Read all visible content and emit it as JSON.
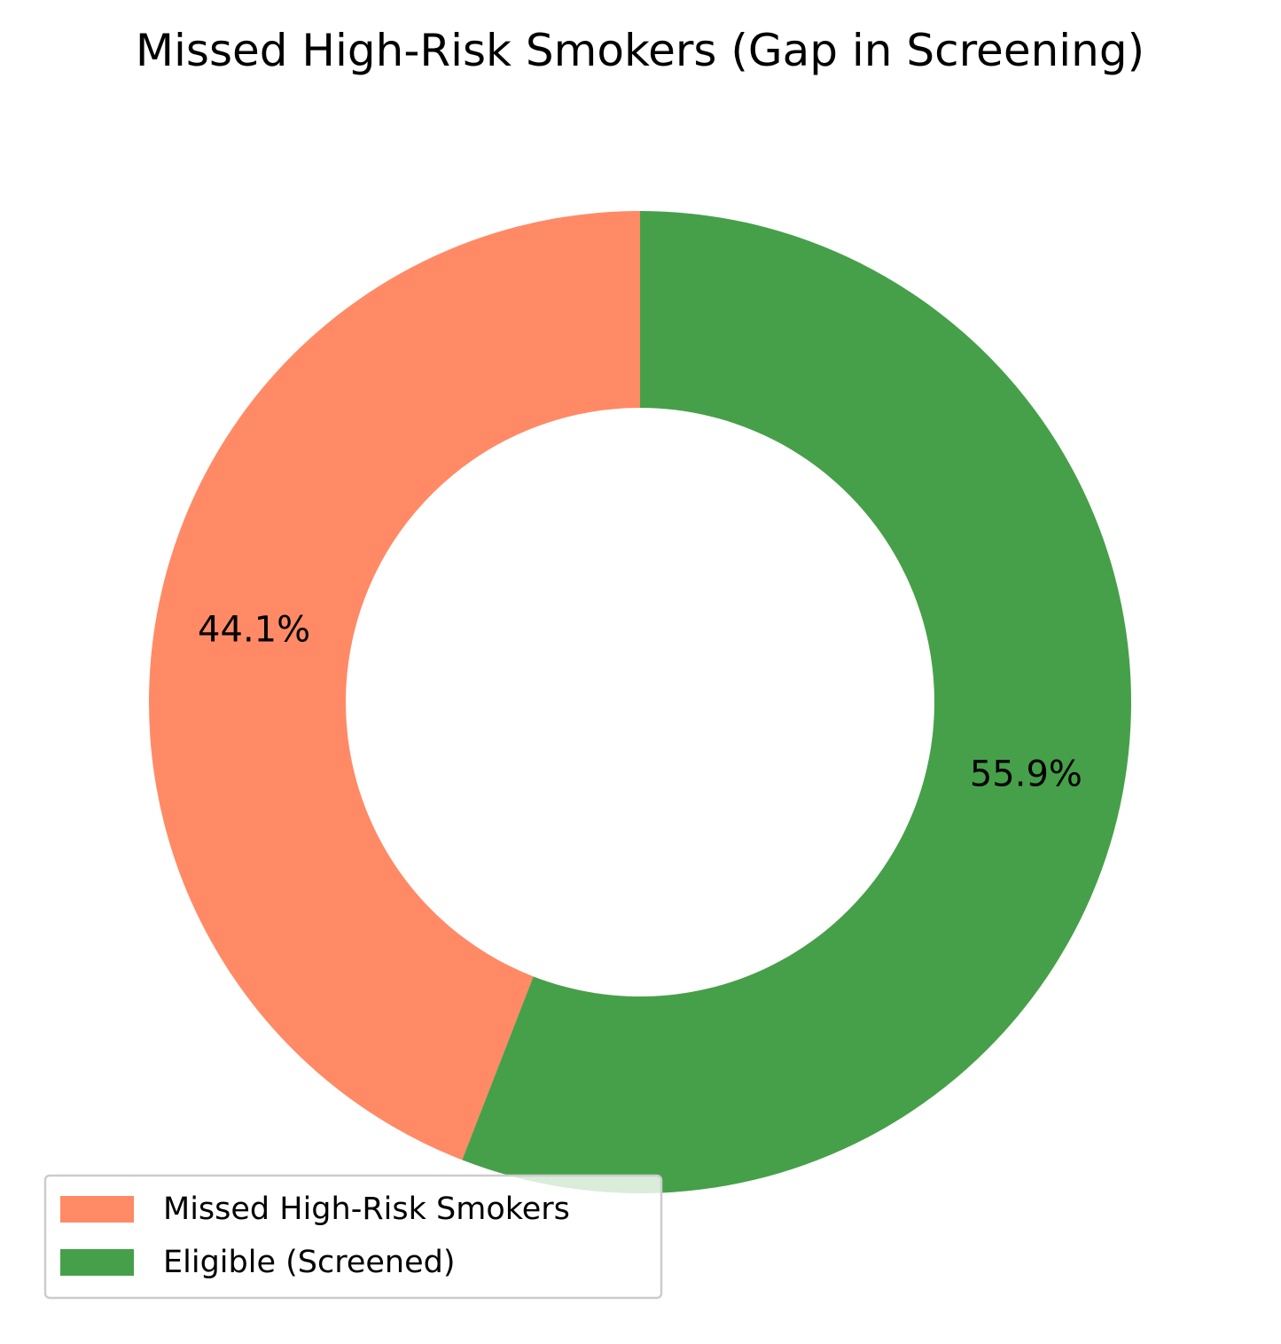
{
  "chart_data": {
    "type": "pie",
    "style": "donut",
    "title": "Missed High-Risk Smokers (Gap in Screening)",
    "start_angle_deg": 90,
    "direction": "counterclockwise",
    "slices": [
      {
        "label": "Missed High-Risk Smokers",
        "value": 44.1,
        "value_label": "44.1%",
        "color": "#FF8A65"
      },
      {
        "label": "Eligible (Screened)",
        "value": 55.9,
        "value_label": "55.9%",
        "color": "#46A049"
      }
    ],
    "legend": {
      "placement": "bottom-left",
      "entries": [
        "Missed High-Risk Smokers",
        "Eligible (Screened)"
      ]
    }
  }
}
